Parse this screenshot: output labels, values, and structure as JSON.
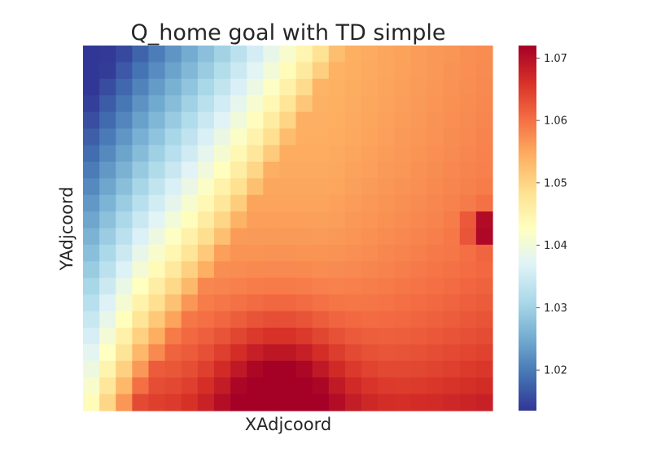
{
  "chart_data": {
    "type": "heatmap",
    "title": "Q_home goal with TD simple",
    "xlabel": "XAdjcoord",
    "ylabel": "YAdjcoord",
    "x_ticks_shown": false,
    "y_ticks_shown": false,
    "grid": false,
    "colormap": "RdYlBu_r",
    "colormap_stops": [
      "#313695",
      "#4575b4",
      "#74add1",
      "#abd9e9",
      "#e0f3f8",
      "#ffffbf",
      "#fee090",
      "#fdae61",
      "#f46d43",
      "#d73027",
      "#a50026"
    ],
    "colorbar": {
      "position": "right",
      "range": [
        1.0135,
        1.072
      ],
      "ticks": [
        "1.02",
        "1.03",
        "1.04",
        "1.05",
        "1.06",
        "1.07"
      ]
    },
    "value_range": [
      1.0135,
      1.072
    ],
    "grid_size": {
      "cols": 25,
      "rows": 22
    },
    "landmarks": [
      {
        "description": "minimum",
        "x": 0.0,
        "y": 1.0,
        "value": 1.0135
      },
      {
        "description": "local maximum",
        "x": 1.0,
        "y": 0.5,
        "value": 1.072
      },
      {
        "description": "local maximum",
        "x": 0.48,
        "y": 0.02,
        "value": 1.068
      }
    ]
  }
}
